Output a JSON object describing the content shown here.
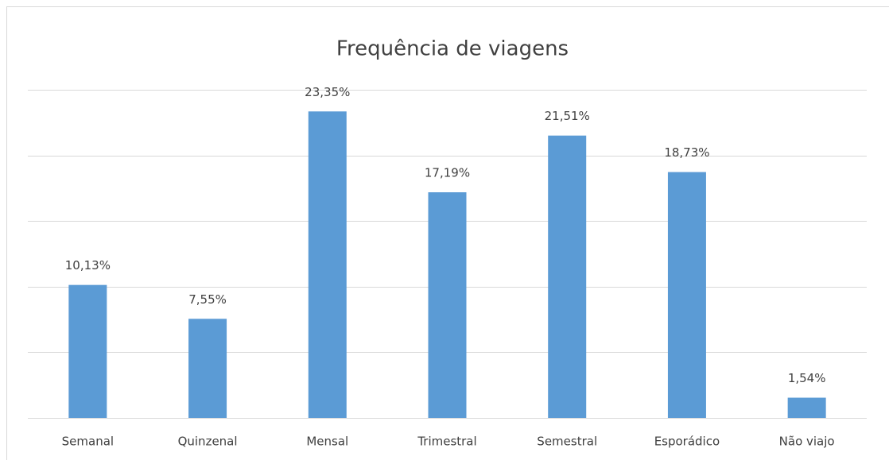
{
  "chart_data": {
    "type": "bar",
    "title": "Frequência de viagens",
    "categories": [
      "Semanal",
      "Quinzenal",
      "Mensal",
      "Trimestral",
      "Semestral",
      "Esporádico",
      "Não viajo"
    ],
    "values": [
      10.13,
      7.55,
      23.35,
      17.19,
      21.51,
      18.73,
      1.54
    ],
    "value_labels": [
      "10,13%",
      "7,55%",
      "23,35%",
      "17,19%",
      "21,51%",
      "18,73%",
      "1,54%"
    ],
    "color": "#5b9bd5",
    "ylim": [
      0,
      25
    ],
    "yticks": [
      0,
      5,
      10,
      15,
      20,
      25
    ],
    "grid": true
  }
}
